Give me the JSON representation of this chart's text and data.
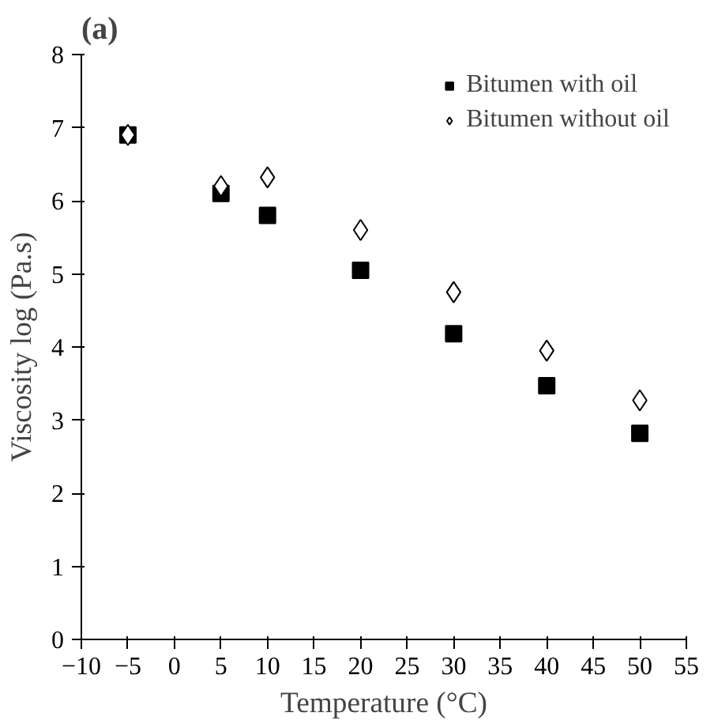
{
  "chart_data": {
    "type": "scatter",
    "title": "(a)",
    "xlabel": "Temperature (°C)",
    "ylabel": "Viscosity log (Pa.s)",
    "x": [
      -5,
      5,
      10,
      20,
      30,
      40,
      50
    ],
    "series": [
      {
        "name": "Bitumen with oil",
        "color": "#000000",
        "marker": "square",
        "values": [
          6.9,
          6.1,
          5.8,
          5.05,
          4.18,
          3.47,
          2.82
        ]
      },
      {
        "name": "Bitumen without oil",
        "color": "#000000",
        "marker": "diamond",
        "values": [
          6.9,
          6.2,
          6.32,
          5.6,
          4.75,
          3.95,
          3.27
        ]
      }
    ],
    "xlim": [
      -10,
      55
    ],
    "xticks": [
      -10,
      -5,
      0,
      5,
      10,
      15,
      20,
      25,
      30,
      35,
      40,
      45,
      50,
      55
    ],
    "ylim": [
      0,
      8
    ],
    "yticks": [
      0,
      1,
      2,
      3,
      4,
      5,
      6,
      7,
      8
    ],
    "grid": false,
    "legend": "top right"
  }
}
